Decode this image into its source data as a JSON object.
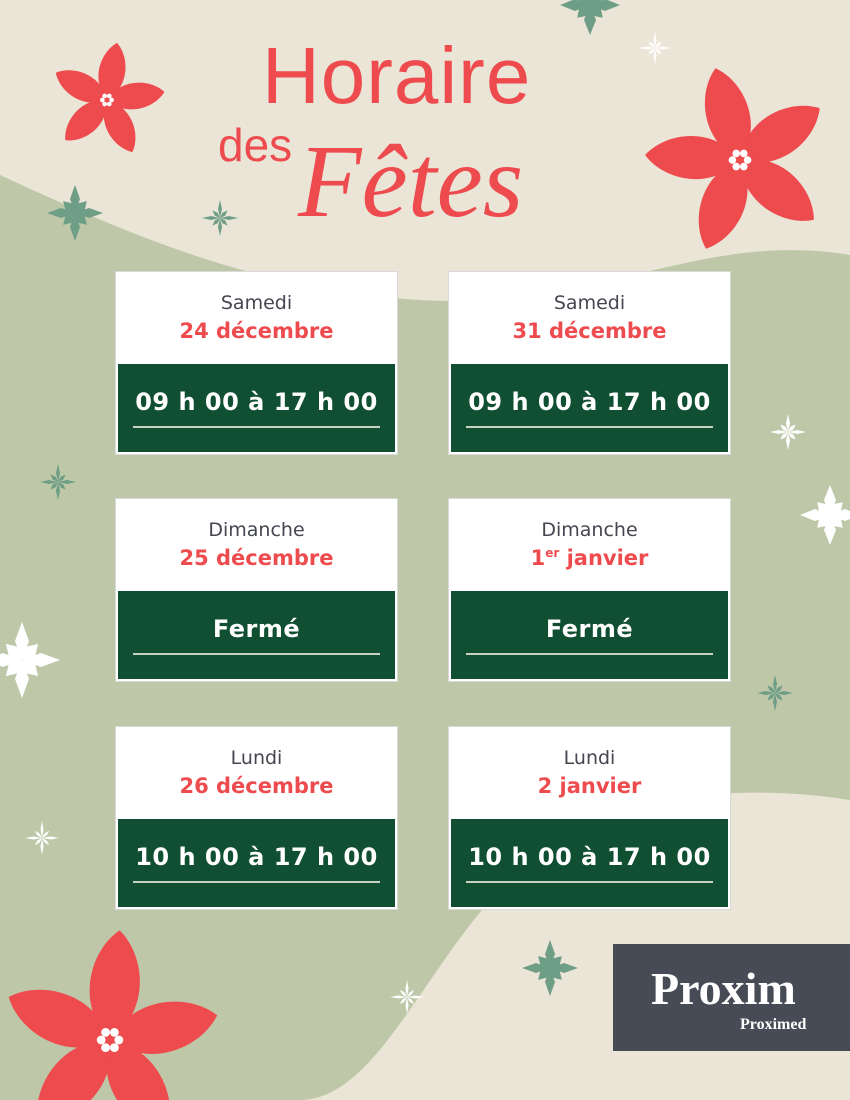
{
  "title": {
    "line1": "Horaire",
    "line2": "des",
    "line3": "Fêtes"
  },
  "cards": [
    {
      "day": "Samedi",
      "date": "24 décembre",
      "sup": "",
      "hours": "09 h 00 à 17 h 00"
    },
    {
      "day": "Samedi",
      "date": "31 décembre",
      "sup": "",
      "hours": "09 h 00 à 17 h 00"
    },
    {
      "day": "Dimanche",
      "date": "25 décembre",
      "sup": "",
      "hours": "Fermé"
    },
    {
      "day": "Dimanche",
      "date": "1",
      "sup": "er",
      "date_rest": " janvier",
      "hours": "Fermé"
    },
    {
      "day": "Lundi",
      "date": "26 décembre",
      "sup": "",
      "hours": "10 h 00 à 17 h 00"
    },
    {
      "day": "Lundi",
      "date": "2 janvier",
      "sup": "",
      "hours": "10 h 00 à 17 h 00"
    }
  ],
  "logo": {
    "main": "Proxim",
    "sub": "Proximed"
  },
  "colors": {
    "background": "#ebe5d7",
    "green_shape": "#bec8a8",
    "red": "#ee4b4e",
    "dark_green": "#114f33",
    "logo_bg": "#474b55",
    "logo_accent": "#8dc63f"
  }
}
